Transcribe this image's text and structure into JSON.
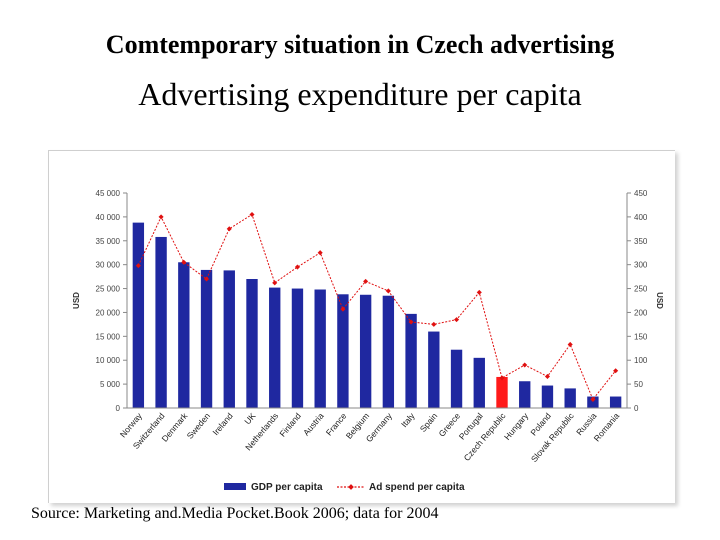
{
  "page": {
    "title": "Comtemporary situation in Czech advertising",
    "subtitle": "Advertising expenditure per capita",
    "source": "Source: Marketing and.Media Pocket.Book 2006; data for 2004"
  },
  "chart_data": {
    "type": "bar",
    "categories": [
      "Norway",
      "Switzerland",
      "Denmark",
      "Sweden",
      "Ireland",
      "UK",
      "Netherlands",
      "Finland",
      "Austria",
      "France",
      "Belgium",
      "Germany",
      "Italy",
      "Spain",
      "Greece",
      "Portugal",
      "Czech Republic",
      "Hungary",
      "Poland",
      "Slovak Republic",
      "Russia",
      "Romania"
    ],
    "series": [
      {
        "name": "GDP per capita",
        "type": "bar",
        "axis": "left",
        "color": "#1f28a0",
        "values": [
          38800,
          35800,
          30500,
          28900,
          28800,
          27000,
          25200,
          25000,
          24800,
          23800,
          23700,
          23500,
          19700,
          16000,
          12200,
          10500,
          6500,
          5600,
          4700,
          4100,
          2400,
          2400
        ]
      },
      {
        "name": "Ad spend per capita",
        "type": "line",
        "axis": "right",
        "color": "#e01010",
        "values": [
          298,
          400,
          305,
          270,
          375,
          405,
          262,
          295,
          325,
          207,
          265,
          245,
          180,
          175,
          185,
          242,
          63,
          90,
          66,
          133,
          18,
          78
        ]
      }
    ],
    "highlight": {
      "category": "Czech Republic",
      "color": "#ff1a1a"
    },
    "y_left": {
      "label": "USD",
      "min": 0,
      "max": 45000,
      "ticks": [
        "0",
        "5 000",
        "10 000",
        "15 000",
        "20 000",
        "25 000",
        "30 000",
        "35 000",
        "40 000",
        "45 000"
      ]
    },
    "y_right": {
      "label": "USD",
      "min": 0,
      "max": 450,
      "ticks": [
        "0",
        "50",
        "100",
        "150",
        "200",
        "250",
        "300",
        "350",
        "400",
        "450"
      ]
    },
    "legend": [
      "GDP per capita",
      "Ad spend per capita"
    ],
    "legend_position": "bottom"
  }
}
